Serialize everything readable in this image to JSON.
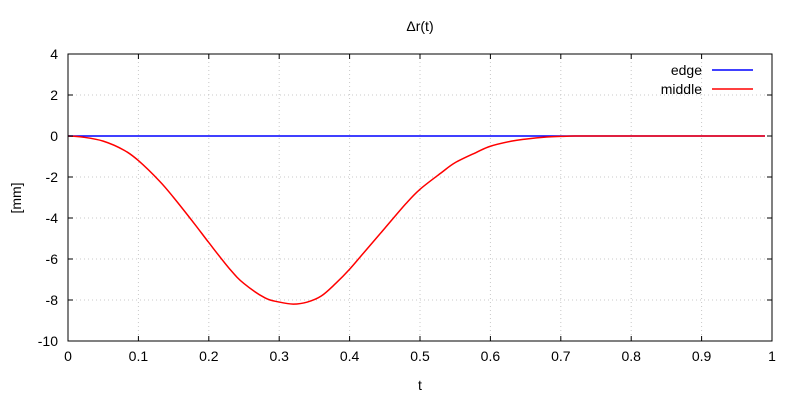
{
  "chart_data": {
    "type": "line",
    "title": "Δr(t)",
    "xlabel": "t",
    "ylabel": "[mm]",
    "xlim": [
      0,
      1
    ],
    "ylim": [
      -10,
      4
    ],
    "x_ticks": [
      0,
      0.1,
      0.2,
      0.3,
      0.4,
      0.5,
      0.6,
      0.7,
      0.8,
      0.9,
      1
    ],
    "x_tick_labels": [
      "0",
      "0.1",
      "0.2",
      "0.3",
      "0.4",
      "0.5",
      "0.6",
      "0.7",
      "0.8",
      "0.9",
      "1"
    ],
    "y_ticks": [
      4,
      2,
      0,
      -2,
      -4,
      -6,
      -8,
      -10
    ],
    "y_tick_labels": [
      "4",
      "2",
      "0",
      "-2",
      "-4",
      "-6",
      "-8",
      "-10"
    ],
    "grid": true,
    "legend_position": "top-right",
    "series": [
      {
        "name": "edge",
        "color": "#0000ff",
        "x": [
          0,
          0.1,
          0.2,
          0.3,
          0.4,
          0.5,
          0.6,
          0.7,
          0.8,
          0.9,
          0.99
        ],
        "y": [
          0,
          0,
          0,
          0,
          0,
          0,
          0,
          0,
          0,
          0,
          0
        ]
      },
      {
        "name": "middle",
        "color": "#ff0000",
        "x": [
          0,
          0.02,
          0.05,
          0.08,
          0.1,
          0.13,
          0.15,
          0.18,
          0.2,
          0.23,
          0.25,
          0.28,
          0.3,
          0.32,
          0.34,
          0.36,
          0.38,
          0.4,
          0.42,
          0.45,
          0.48,
          0.5,
          0.53,
          0.55,
          0.58,
          0.6,
          0.63,
          0.65,
          0.68,
          0.7,
          0.72,
          0.75,
          0.8,
          0.9,
          0.99
        ],
        "y": [
          0,
          -0.05,
          -0.25,
          -0.7,
          -1.2,
          -2.2,
          -3.0,
          -4.3,
          -5.2,
          -6.5,
          -7.2,
          -7.9,
          -8.1,
          -8.2,
          -8.1,
          -7.8,
          -7.2,
          -6.5,
          -5.7,
          -4.5,
          -3.3,
          -2.6,
          -1.8,
          -1.3,
          -0.8,
          -0.5,
          -0.25,
          -0.15,
          -0.05,
          -0.02,
          0,
          0,
          0,
          0,
          0
        ]
      }
    ]
  }
}
